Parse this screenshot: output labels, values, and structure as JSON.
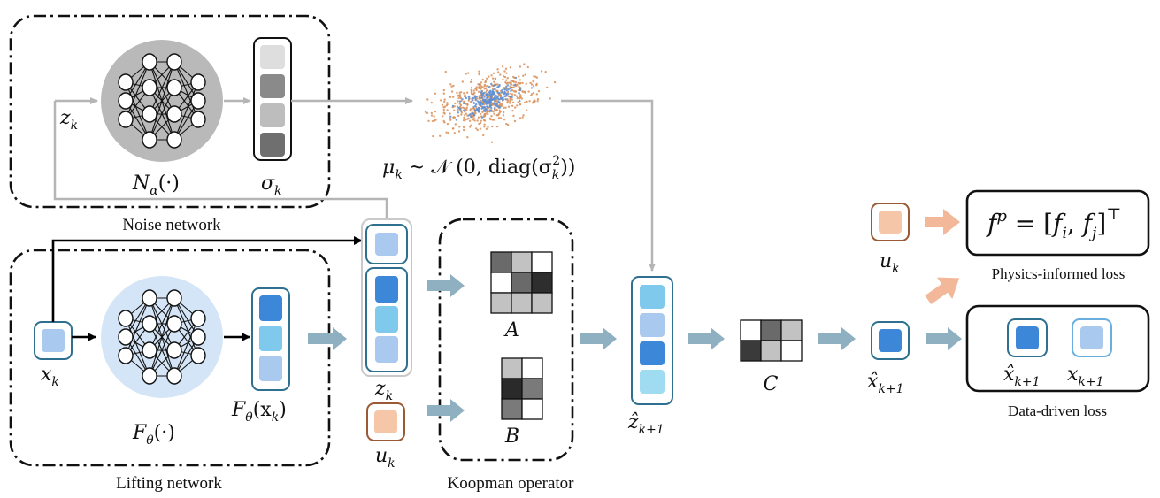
{
  "labels": {
    "noise_network": "Noise network",
    "lifting_network": "Lifting network",
    "koopman_operator": "Koopman operator",
    "physics_loss": "Physics-informed loss",
    "data_loss": "Data-driven loss"
  },
  "math": {
    "z_k_left": "z",
    "z_k_left_sub": "k",
    "n_alpha": "N",
    "n_alpha_sub": "α",
    "n_alpha_arg": "(·)",
    "sigma_k": "σ",
    "sigma_k_sub": "k",
    "mu_formula_mu": "μ",
    "mu_formula_sub": "k",
    "mu_formula_rest": " ~ 𝒩 (0, diag(σ",
    "mu_formula_sub2": "k",
    "mu_formula_sup2": "2",
    "mu_formula_end": "))",
    "x_k": "x",
    "x_k_sub": "k",
    "f_theta": "F",
    "f_theta_sub": "θ",
    "f_theta_arg": "(·)",
    "f_theta_xk": "F",
    "f_theta_xk_sub": "θ",
    "f_theta_xk_arg_open": "(x",
    "f_theta_xk_arg_sub": "k",
    "f_theta_xk_arg_close": ")",
    "z_k_mid": "z",
    "z_k_mid_sub": "k",
    "u_k_mid": "u",
    "u_k_mid_sub": "k",
    "A": "A",
    "B": "B",
    "z_hat": "ẑ",
    "z_hat_sub": "k+1",
    "C": "C",
    "x_hat": "x̂",
    "x_hat_sub": "k+1",
    "u_k_right": "u",
    "u_k_right_sub": "k",
    "fp_f": "f",
    "fp_sup": "p",
    "fp_eq": " = [",
    "fp_fi": "f",
    "fp_fi_sub": "i",
    "fp_comma": ", ",
    "fp_fj": "f",
    "fp_fj_sub": "j",
    "fp_close": "]",
    "fp_T": "⊤",
    "loss_xhat": "x̂",
    "loss_xhat_sub": "k+1",
    "loss_x": "x",
    "loss_x_sub": "k+1"
  },
  "colors": {
    "gray_dark": "#555555",
    "gray_mid": "#8a8a8a",
    "gray_light": "#bdbdbd",
    "gray_pale": "#dedede",
    "blue_dark": "#3d87d8",
    "blue_mid": "#7ec9ec",
    "blue_light": "#a9c9ee",
    "blue_pale": "#9fdcf2",
    "input_fill": "#f5c6a8",
    "frame_blue": "#2f6f8f",
    "frame_orange": "#9a5a35",
    "arrow_teal": "#8fb0c0",
    "arrow_orange": "#f3b79a",
    "nn_gray_bg": "#b9b9b9",
    "nn_blue_bg": "#d4e5f7",
    "scatter_orange": "#d9915a",
    "scatter_blue": "#5b8fd6"
  }
}
